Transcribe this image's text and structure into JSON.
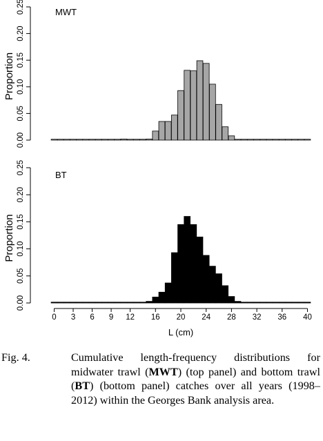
{
  "chart_data": [
    {
      "type": "bar",
      "panel_label": "MWT",
      "ylabel": "Proportion",
      "ylim": [
        0,
        0.25
      ],
      "yticks": [
        "0.00",
        "0.05",
        "0.10",
        "0.15",
        "0.20",
        "0.25"
      ],
      "fill": "#a6a6a6",
      "x": [
        0,
        1,
        2,
        3,
        4,
        5,
        6,
        7,
        8,
        9,
        10,
        11,
        12,
        13,
        14,
        15,
        16,
        17,
        18,
        19,
        20,
        21,
        22,
        23,
        24,
        25,
        26,
        27,
        28,
        29,
        30,
        31,
        32,
        33,
        34,
        35,
        36,
        37,
        38,
        39,
        40
      ],
      "values": [
        0,
        0,
        0,
        0,
        0,
        0,
        0,
        0,
        0,
        0,
        0,
        0.002,
        0.001,
        0,
        0.001,
        0.002,
        0.017,
        0.035,
        0.035,
        0.047,
        0.093,
        0.131,
        0.13,
        0.149,
        0.144,
        0.105,
        0.067,
        0.025,
        0.008,
        0.001,
        0,
        0,
        0,
        0,
        0,
        0,
        0,
        0,
        0,
        0,
        0
      ]
    },
    {
      "type": "bar",
      "panel_label": "BT",
      "ylabel": "Proportion",
      "xlabel": "L (cm)",
      "ylim": [
        0,
        0.25
      ],
      "yticks": [
        "0.00",
        "0.05",
        "0.10",
        "0.15",
        "0.20",
        "0.25"
      ],
      "xticks": [
        "0",
        "3",
        "6",
        "9",
        "12",
        "16",
        "20",
        "24",
        "28",
        "32",
        "36",
        "40"
      ],
      "xtick_values": [
        0,
        3,
        6,
        9,
        12,
        16,
        20,
        24,
        28,
        32,
        36,
        40
      ],
      "fill": "#000000",
      "x": [
        0,
        1,
        2,
        3,
        4,
        5,
        6,
        7,
        8,
        9,
        10,
        11,
        12,
        13,
        14,
        15,
        16,
        17,
        18,
        19,
        20,
        21,
        22,
        23,
        24,
        25,
        26,
        27,
        28,
        29,
        30,
        31,
        32,
        33,
        34,
        35,
        36,
        37,
        38,
        39,
        40
      ],
      "values": [
        0,
        0,
        0,
        0,
        0,
        0,
        0,
        0,
        0,
        0,
        0,
        0.001,
        0.001,
        0.001,
        0.001,
        0.003,
        0.011,
        0.02,
        0.037,
        0.093,
        0.145,
        0.16,
        0.145,
        0.122,
        0.088,
        0.068,
        0.054,
        0.032,
        0.012,
        0.003,
        0,
        0,
        0,
        0,
        0,
        0,
        0,
        0,
        0,
        0,
        0
      ]
    }
  ],
  "caption": {
    "label": "Fig. 4.",
    "t1": "Cumulative length-frequency distributions for midwater trawl (",
    "b1": "MWT",
    "t2": ") (top panel) and bottom trawl (",
    "b2": "BT",
    "t3": ") (bottom panel) catches over all years (1998–2012) within the Georges Bank analysis area."
  }
}
